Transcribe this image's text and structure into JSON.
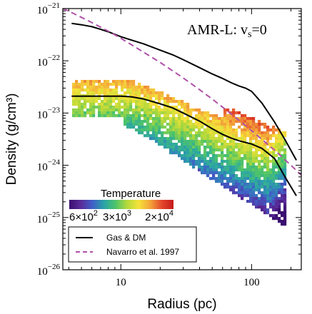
{
  "chart_data": {
    "type": "line",
    "title": "",
    "xlabel": "Radius (pc)",
    "ylabel": "Density (g/cm³)",
    "x_scale": "log",
    "y_scale": "log",
    "xlim": [
      3.6,
      240
    ],
    "ylim": [
      1e-26,
      1e-21
    ],
    "x_ticks": [
      {
        "value": 10,
        "label": "10"
      },
      {
        "value": 100,
        "label": "100"
      }
    ],
    "y_ticks": [
      {
        "value": 1e-21,
        "mant": "10",
        "exp": "−21"
      },
      {
        "value": 1e-22,
        "mant": "10",
        "exp": "−22"
      },
      {
        "value": 1e-23,
        "mant": "10",
        "exp": "−23"
      },
      {
        "value": 1e-24,
        "mant": "10",
        "exp": "−24"
      },
      {
        "value": 1e-25,
        "mant": "10",
        "exp": "−25"
      },
      {
        "value": 1e-26,
        "mant": "10",
        "exp": "−26"
      }
    ],
    "annotation": {
      "prefix": "AMR-L: v",
      "sub": "s",
      "suffix": "=0"
    },
    "grid": false,
    "legend_position": "bottom-left",
    "series": [
      {
        "name": "Gas & DM",
        "color": "#000000",
        "dash": "solid",
        "x": [
          4.2,
          5,
          6,
          7,
          8,
          10,
          12,
          15,
          20,
          25,
          30,
          40,
          50,
          60,
          70,
          80,
          90,
          100,
          120,
          150,
          180,
          220
        ],
        "y": [
          5.2e-22,
          4.9e-22,
          4.5e-22,
          4e-22,
          3.6e-22,
          2.9e-22,
          2.5e-22,
          2.1e-22,
          1.6e-22,
          1.3e-22,
          1.05e-22,
          7.4e-23,
          5.6e-23,
          4.6e-23,
          3.8e-23,
          3.3e-23,
          3e-23,
          2.6e-23,
          1.55e-23,
          6.7e-24,
          3.1e-24,
          1.25e-24
        ]
      },
      {
        "name": "",
        "color": "#000000",
        "dash": "solid",
        "x": [
          4.2,
          5,
          6,
          8,
          10,
          12,
          15,
          20,
          25,
          30,
          40,
          50,
          60,
          70,
          80,
          100,
          120,
          150,
          180,
          220
        ],
        "y": [
          2.1e-23,
          2.1e-23,
          2.1e-23,
          2.1e-23,
          2.1e-23,
          2.05e-23,
          1.85e-23,
          1.5e-23,
          1.25e-23,
          1e-23,
          7e-24,
          5e-24,
          3.9e-24,
          3.3e-24,
          2.95e-24,
          2.55e-24,
          2.1e-24,
          1.35e-24,
          6e-25,
          2.6e-25
        ]
      },
      {
        "name": "Navarro et al. 1997",
        "color": "#b050a8",
        "dash": "dashed",
        "x": [
          3.6,
          4,
          5,
          6,
          8,
          10,
          15,
          20,
          30,
          40,
          50,
          60,
          80,
          100,
          150,
          200,
          240
        ],
        "y": [
          1e-21,
          8.9e-22,
          6.8e-22,
          5.4e-22,
          3.7e-22,
          2.7e-22,
          1.45e-22,
          9.3e-23,
          4.7e-23,
          2.8e-23,
          1.85e-23,
          1.3e-23,
          7.3e-24,
          4.6e-24,
          1.95e-24,
          1e-24,
          6.5e-25
        ]
      }
    ],
    "colorbar": {
      "label": "Temperature",
      "min": 600,
      "max": 20000,
      "scale": "log",
      "colormap": [
        "#3b0f70",
        "#5a2c9a",
        "#3f60c8",
        "#2aa3a8",
        "#4dc46a",
        "#b5d93a",
        "#f5e23a",
        "#f3a33a",
        "#e3462c",
        "#c51a1a"
      ],
      "ticks": [
        {
          "value": 600,
          "mant": "6×10",
          "exp": "2"
        },
        {
          "value": 3000,
          "mant": "3×10",
          "exp": "3"
        },
        {
          "value": 20000,
          "mant": "2×10",
          "exp": "4"
        }
      ]
    }
  }
}
